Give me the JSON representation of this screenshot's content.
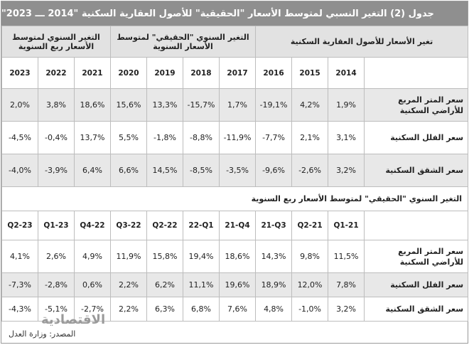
{
  "title": "جدول (2) التغير النسبي لمتوسط الأسعار \"الحقيقية\" للأصول العقارية السكنية \"2014 ـــ 2023\"",
  "annual": {
    "groups": [
      "تغير الأسعار للأصول العقارية السكنية",
      "التغير السنوي \"الحقيقي\" لمتوسط الأسعار السنوية",
      "التغير السنوي لمتوسط الأسعار ربع السنوية"
    ],
    "years": [
      "2014",
      "2015",
      "2016",
      "2017",
      "2018",
      "2019",
      "2020",
      "2021",
      "2022",
      "2023"
    ],
    "rows": [
      {
        "label": "سعر المتر المربع للأراضي السكنية",
        "values": [
          "1,9%",
          "4,2%",
          "-19,1%",
          "1,7%",
          "-15,7%",
          "13,3%",
          "15,6%",
          "18,6%",
          "3,8%",
          "2,0%"
        ]
      },
      {
        "label": "سعر الفلل السكنية",
        "values": [
          "3,1%",
          "2,1%",
          "-7,7%",
          "-11,9%",
          "-8,8%",
          "-1,8%",
          "5,5%",
          "13,7%",
          "-0,4%",
          "-4,5%"
        ]
      },
      {
        "label": "سعر الشقق السكنية",
        "values": [
          "3,2%",
          "-2,6%",
          "-9,6%",
          "-3,5%",
          "-8,5%",
          "14,5%",
          "6,6%",
          "6,4%",
          "-3,9%",
          "-4,0%"
        ]
      }
    ]
  },
  "quarterly": {
    "heading": "التغير السنوي \"الحقيقي\" لمتوسط الأسعار ربع السنوية",
    "quarters": [
      "Q1-21",
      "Q2-21",
      "21-Q3",
      "21-Q4",
      "22-Q1",
      "Q2-22",
      "Q3-22",
      "Q4-22",
      "Q1-23",
      "Q2-23"
    ],
    "rows": [
      {
        "label": "سعر المتر المربع للأراضي السكنية",
        "values": [
          "11,5%",
          "9,8%",
          "14,3%",
          "18,6%",
          "19,4%",
          "15,8%",
          "11,9%",
          "4,9%",
          "2,6%",
          "4,1%"
        ]
      },
      {
        "label": "سعر الفلل السكنية",
        "values": [
          "7,8%",
          "12,0%",
          "18,9%",
          "19,6%",
          "11,1%",
          "6,2%",
          "2,2%",
          "0,6%",
          "-2,8%",
          "-7,3%"
        ]
      },
      {
        "label": "سعر الشقق السكنية",
        "values": [
          "3,2%",
          "-1,0%",
          "4,8%",
          "7,6%",
          "6,8%",
          "6,3%",
          "2,2%",
          "-2,7%",
          "-5,1%",
          "-4,3%"
        ]
      }
    ]
  },
  "footer": {
    "source": "المصدر: وزارة العدل",
    "brand": "الاقتصادية"
  }
}
